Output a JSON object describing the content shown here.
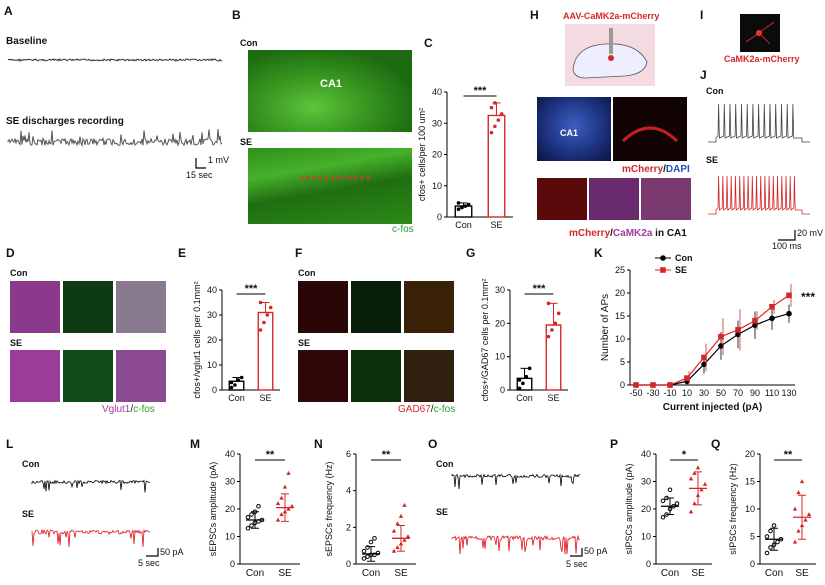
{
  "panels": [
    "A",
    "B",
    "C",
    "D",
    "E",
    "F",
    "G",
    "H",
    "I",
    "J",
    "K",
    "L",
    "M",
    "N",
    "O",
    "P",
    "Q"
  ],
  "A": {
    "baseline_label": "Baseline",
    "se_label": "SE discharges recording",
    "scale_v": "1 mV",
    "scale_t": "15 sec"
  },
  "B": {
    "con": "Con",
    "se": "SE",
    "region": "CA1",
    "stain": "c-fos"
  },
  "D": {
    "con": "Con",
    "se": "SE",
    "stain1": "Vglut1",
    "stain2": "c-fos"
  },
  "F": {
    "con": "Con",
    "se": "SE",
    "stain1": "GAD67",
    "stain2": "c-fos"
  },
  "H": {
    "virus": "AAV-CaMK2a-mCherry",
    "region": "CA1",
    "stain_top1": "mCherry",
    "stain_top2": "DAPI",
    "stain_bot1": "mCherry",
    "stain_bot2": "CaMK2a",
    "stain_bot3": "in CA1"
  },
  "I": {
    "label": "CaMK2a-mCherry"
  },
  "J": {
    "con": "Con",
    "se": "SE",
    "scale_v": "20 mV",
    "scale_t": "100 ms"
  },
  "L": {
    "con": "Con",
    "se": "SE",
    "scale_a": "50 pA",
    "scale_t": "5 sec"
  },
  "O": {
    "con": "Con",
    "se": "SE",
    "scale_a": "50 pA",
    "scale_t": "5 sec"
  },
  "chart_data": [
    {
      "id": "C",
      "type": "bar",
      "categories": [
        "Con",
        "SE"
      ],
      "values": [
        3.5,
        32.5
      ],
      "ylabel": "cfos+ cells/per 100 um²",
      "ylim": [
        0,
        40
      ],
      "yticks": [
        0,
        10,
        20,
        30,
        40
      ],
      "sig": "***",
      "colors": [
        "#000000",
        "#d62728"
      ],
      "points": [
        [
          2.5,
          3,
          3.5,
          4,
          4.5,
          3.2
        ],
        [
          27,
          29,
          31,
          33,
          35,
          36.5
        ]
      ]
    },
    {
      "id": "E",
      "type": "bar",
      "categories": [
        "Con",
        "SE"
      ],
      "values": [
        3.5,
        31
      ],
      "ylabel": "cfos+/vglut1 cells per 0.1mm²",
      "ylim": [
        0,
        40
      ],
      "yticks": [
        0,
        10,
        20,
        30,
        40
      ],
      "sig": "***",
      "colors": [
        "#000000",
        "#d62728"
      ],
      "points": [
        [
          1,
          2,
          4,
          5,
          3
        ],
        [
          24,
          27,
          30,
          33,
          35
        ]
      ]
    },
    {
      "id": "G",
      "type": "bar",
      "categories": [
        "Con",
        "SE"
      ],
      "values": [
        3.5,
        19.5
      ],
      "ylabel": "cfos+/GAD67 cells per 0.1mm²",
      "ylim": [
        0,
        30
      ],
      "yticks": [
        0,
        10,
        20,
        30
      ],
      "sig": "***",
      "colors": [
        "#000000",
        "#d62728"
      ],
      "points": [
        [
          0.5,
          2,
          4,
          6.5,
          3
        ],
        [
          16,
          18,
          20,
          23,
          26
        ]
      ]
    },
    {
      "id": "K",
      "type": "line",
      "title": "",
      "xlabel": "Current injected (pA)",
      "ylabel": "Number of APs",
      "x": [
        -50,
        -30,
        -10,
        10,
        30,
        50,
        70,
        90,
        110,
        130
      ],
      "ylim": [
        0,
        25
      ],
      "yticks": [
        0,
        5,
        10,
        15,
        20,
        25
      ],
      "sig": "***",
      "series": [
        {
          "name": "Con",
          "color": "#000000",
          "values": [
            0,
            0,
            0,
            0.8,
            4.5,
            8.5,
            11,
            13,
            14.5,
            15.5
          ],
          "err": [
            0,
            0,
            0,
            0.8,
            2,
            3,
            3,
            3,
            2.5,
            2
          ]
        },
        {
          "name": "SE",
          "color": "#d62728",
          "values": [
            0,
            0,
            0,
            1.5,
            6,
            10.5,
            12,
            14,
            17,
            19.5
          ],
          "err": [
            0,
            0,
            0,
            1.5,
            3,
            4,
            4.5,
            2,
            1.5,
            2.5
          ]
        }
      ]
    },
    {
      "id": "M",
      "type": "scatter",
      "categories": [
        "Con",
        "SE"
      ],
      "ylabel": "sEPSCs amplitude (pA)",
      "ylim": [
        0,
        40
      ],
      "yticks": [
        0,
        10,
        20,
        30,
        40
      ],
      "sig": "**",
      "colors": [
        "#000000",
        "#d62728"
      ],
      "means": [
        16,
        20.5
      ],
      "err": [
        3,
        5
      ],
      "points": [
        [
          13,
          14,
          15,
          15.5,
          16,
          17,
          18,
          19,
          21
        ],
        [
          16,
          18,
          19,
          20,
          21,
          22,
          24,
          28,
          33
        ]
      ]
    },
    {
      "id": "N",
      "type": "scatter",
      "categories": [
        "Con",
        "SE"
      ],
      "ylabel": "sEPSCs frequency (Hz)",
      "ylim": [
        0,
        6
      ],
      "yticks": [
        0,
        2,
        4,
        6
      ],
      "sig": "**",
      "colors": [
        "#000000",
        "#d62728"
      ],
      "means": [
        0.55,
        1.4
      ],
      "err": [
        0.4,
        0.7
      ],
      "points": [
        [
          0.3,
          0.4,
          0.5,
          0.5,
          0.6,
          0.7,
          0.9,
          1.2,
          1.4
        ],
        [
          0.7,
          0.9,
          1.1,
          1.3,
          1.5,
          1.8,
          2.2,
          2.6,
          3.2
        ]
      ]
    },
    {
      "id": "P",
      "type": "scatter",
      "categories": [
        "Con",
        "SE"
      ],
      "ylabel": "sIPSCs amplitude (pA)",
      "ylim": [
        0,
        40
      ],
      "yticks": [
        0,
        10,
        20,
        30,
        40
      ],
      "sig": "*",
      "colors": [
        "#000000",
        "#d62728"
      ],
      "means": [
        21,
        27.5
      ],
      "err": [
        3,
        6
      ],
      "points": [
        [
          17,
          18,
          20,
          21,
          22,
          23,
          24,
          27
        ],
        [
          19,
          22,
          25,
          27,
          29,
          31,
          33,
          35
        ]
      ]
    },
    {
      "id": "Q",
      "type": "scatter",
      "categories": [
        "Con",
        "SE"
      ],
      "ylabel": "sIPSCs frequency (Hz)",
      "ylim": [
        0,
        20
      ],
      "yticks": [
        0,
        5,
        10,
        15,
        20
      ],
      "sig": "**",
      "colors": [
        "#000000",
        "#d62728"
      ],
      "means": [
        4.5,
        8.5
      ],
      "err": [
        2,
        4
      ],
      "points": [
        [
          2,
          3,
          3.5,
          4,
          4.5,
          5,
          6,
          7
        ],
        [
          4,
          6,
          7,
          8,
          9,
          10,
          13,
          15
        ]
      ]
    }
  ]
}
